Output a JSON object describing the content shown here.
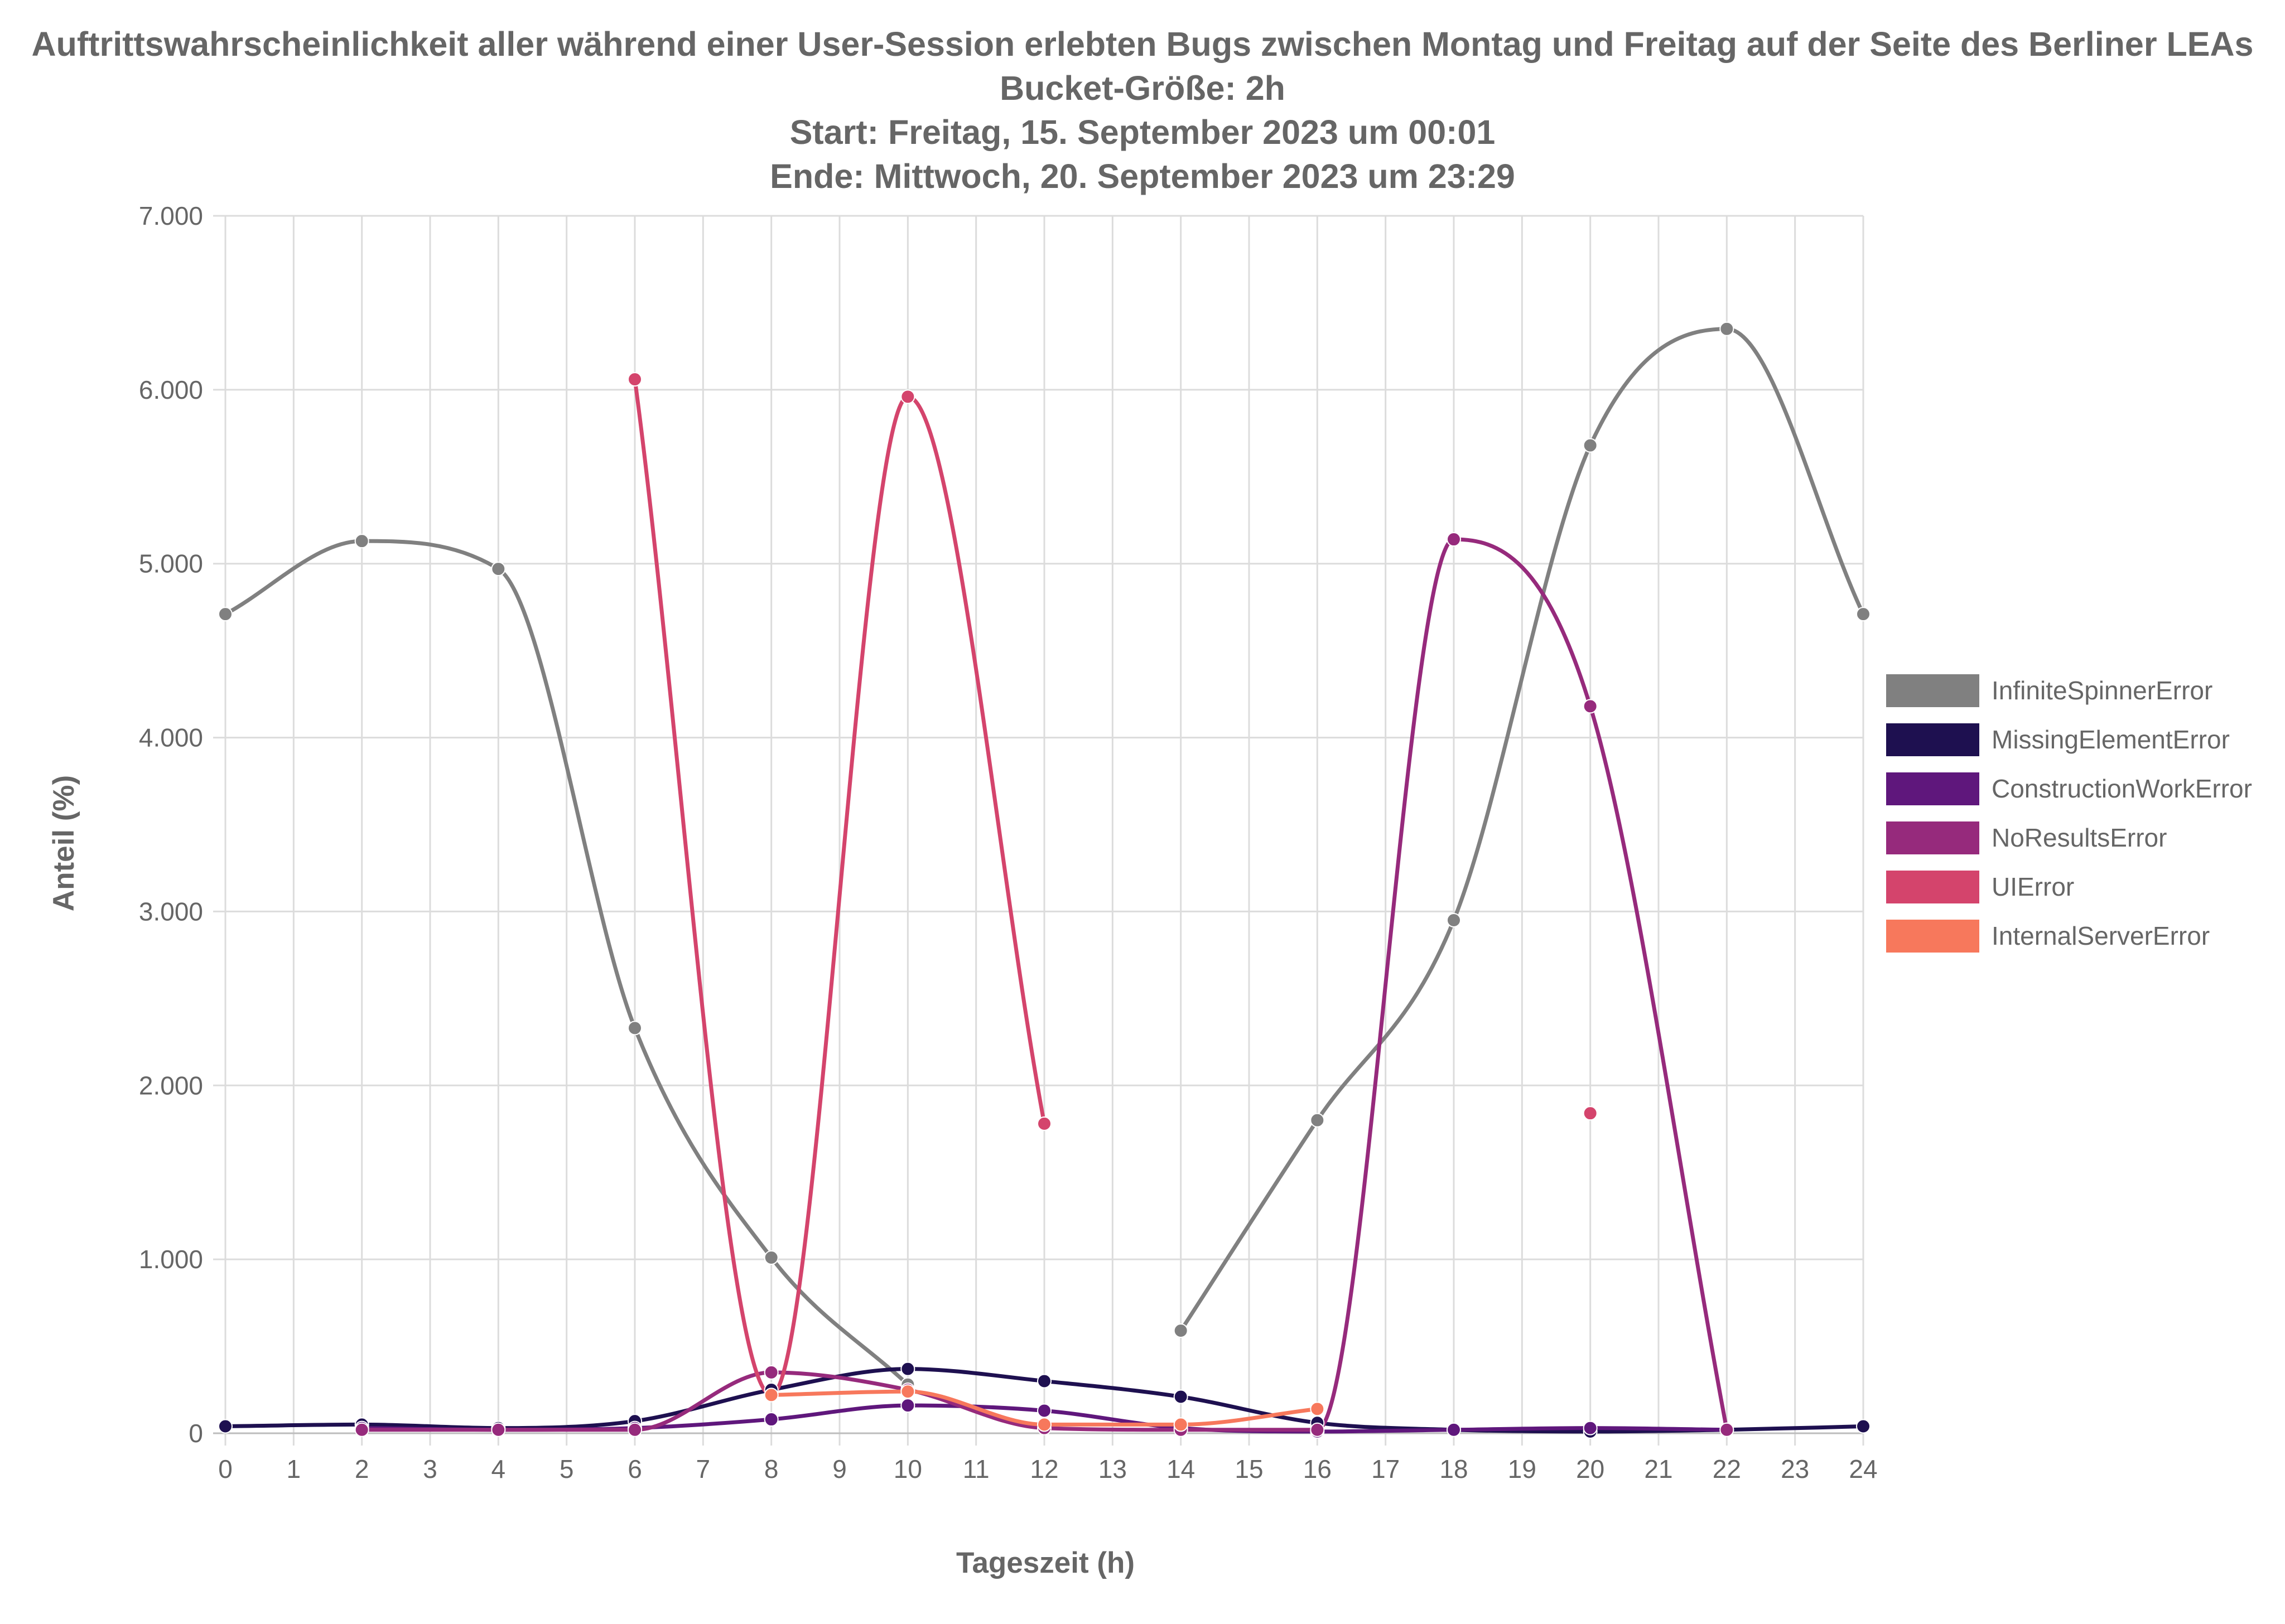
{
  "title_lines": [
    "Auftrittswahrscheinlichkeit aller während einer User-Session erlebten Bugs zwischen Montag und Freitag auf der Seite des Berliner LEAs",
    "Bucket-Größe: 2h",
    "Start: Freitag, 15. September 2023 um 00:01",
    "Ende: Mittwoch, 20. September 2023 um 23:29"
  ],
  "chart_data": {
    "type": "line",
    "xlabel": "Tageszeit (h)",
    "ylabel": "Anteil (%)",
    "xlim": [
      0,
      24
    ],
    "ylim": [
      0,
      7
    ],
    "x_ticks": [
      "0",
      "1",
      "2",
      "3",
      "4",
      "5",
      "6",
      "7",
      "8",
      "9",
      "10",
      "11",
      "12",
      "13",
      "14",
      "15",
      "16",
      "17",
      "18",
      "19",
      "20",
      "21",
      "22",
      "23",
      "24"
    ],
    "y_ticks": [
      "0",
      "1.000",
      "2.000",
      "3.000",
      "4.000",
      "5.000",
      "6.000",
      "7.000"
    ],
    "grid": true,
    "legend_position": "right",
    "smooth": true,
    "x": [
      0,
      2,
      4,
      6,
      8,
      10,
      12,
      14,
      16,
      18,
      20,
      22,
      24
    ],
    "series": [
      {
        "name": "InfiniteSpinnerError",
        "color": "#808080",
        "values": [
          4.71,
          5.13,
          4.97,
          2.33,
          1.01,
          0.28,
          null,
          0.59,
          1.8,
          2.95,
          5.68,
          6.35,
          4.71
        ]
      },
      {
        "name": "MissingElementError",
        "color": "#1e1050",
        "values": [
          0.04,
          0.05,
          0.03,
          0.07,
          0.25,
          0.37,
          0.3,
          0.21,
          0.06,
          0.02,
          0.01,
          0.02,
          0.04
        ]
      },
      {
        "name": "ConstructionWorkError",
        "color": "#5f177c",
        "values": [
          null,
          0.03,
          0.02,
          0.03,
          0.08,
          0.16,
          0.13,
          0.03,
          0.01,
          0.02,
          0.03,
          0.02,
          null
        ]
      },
      {
        "name": "NoResultsError",
        "color": "#962a7c",
        "values": [
          null,
          0.02,
          0.02,
          0.02,
          0.35,
          0.25,
          0.03,
          0.02,
          0.02,
          5.14,
          4.18,
          0.02,
          null
        ]
      },
      {
        "name": "UIError",
        "color": "#d4446c",
        "values": [
          null,
          null,
          null,
          6.06,
          0.22,
          5.96,
          1.78,
          null,
          null,
          null,
          1.84,
          null,
          null
        ]
      },
      {
        "name": "InternalServerError",
        "color": "#f7785c",
        "values": [
          null,
          null,
          null,
          null,
          0.22,
          0.24,
          0.05,
          0.05,
          0.14,
          null,
          null,
          null,
          null
        ]
      }
    ]
  }
}
